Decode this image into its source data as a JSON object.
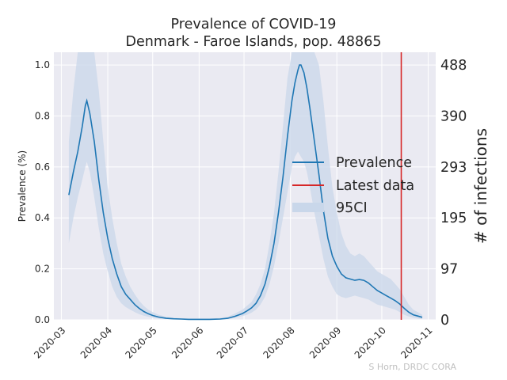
{
  "chart_data": {
    "type": "line",
    "title": "Prevalence of COVID-19",
    "subtitle": "Denmark - Faroe Islands, pop. 48865",
    "ylabel": "Prevalence (%)",
    "ylabel_right": "# of infections",
    "credit": "S Horn, DRDC CORA",
    "x_ticks": [
      "2020-03",
      "2020-04",
      "2020-05",
      "2020-06",
      "2020-07",
      "2020-08",
      "2020-09",
      "2020-10",
      "2020-11"
    ],
    "y_ticks": [
      "0.0",
      "0.2",
      "0.4",
      "0.6",
      "0.8",
      "1.0"
    ],
    "y_ticks_right": [
      "0",
      "97",
      "195",
      "293",
      "390",
      "488"
    ],
    "ylim": [
      0,
      1.05
    ],
    "xlim": [
      "2020-02-25",
      "2020-11-06"
    ],
    "grid": true,
    "legend_position": "center-right",
    "colors": {
      "prevalence": "#1f77b4",
      "latest": "#d62728",
      "ci": "#c9d7ea",
      "background": "#eaeaf2"
    },
    "latest_data_date": "2020-10-14",
    "series": [
      {
        "name": "Prevalence",
        "x": [
          "2020-03-06",
          "2020-03-09",
          "2020-03-12",
          "2020-03-15",
          "2020-03-17",
          "2020-03-18",
          "2020-03-20",
          "2020-03-23",
          "2020-03-26",
          "2020-03-29",
          "2020-04-01",
          "2020-04-04",
          "2020-04-07",
          "2020-04-10",
          "2020-04-13",
          "2020-04-16",
          "2020-04-19",
          "2020-04-22",
          "2020-04-25",
          "2020-04-28",
          "2020-05-01",
          "2020-05-05",
          "2020-05-10",
          "2020-05-15",
          "2020-05-20",
          "2020-05-25",
          "2020-06-01",
          "2020-06-08",
          "2020-06-15",
          "2020-06-20",
          "2020-06-25",
          "2020-06-30",
          "2020-07-03",
          "2020-07-06",
          "2020-07-09",
          "2020-07-12",
          "2020-07-15",
          "2020-07-18",
          "2020-07-21",
          "2020-07-24",
          "2020-07-27",
          "2020-07-30",
          "2020-08-02",
          "2020-08-04",
          "2020-08-06",
          "2020-08-07",
          "2020-08-08",
          "2020-08-10",
          "2020-08-12",
          "2020-08-14",
          "2020-08-17",
          "2020-08-20",
          "2020-08-23",
          "2020-08-26",
          "2020-08-29",
          "2020-09-01",
          "2020-09-04",
          "2020-09-07",
          "2020-09-10",
          "2020-09-13",
          "2020-09-16",
          "2020-09-19",
          "2020-09-22",
          "2020-09-25",
          "2020-09-28",
          "2020-10-01",
          "2020-10-04",
          "2020-10-07",
          "2020-10-10",
          "2020-10-13",
          "2020-10-16",
          "2020-10-19",
          "2020-10-22",
          "2020-10-25",
          "2020-10-28"
        ],
        "values": [
          0.49,
          0.58,
          0.66,
          0.76,
          0.84,
          0.86,
          0.81,
          0.7,
          0.55,
          0.42,
          0.32,
          0.24,
          0.18,
          0.13,
          0.1,
          0.08,
          0.06,
          0.045,
          0.033,
          0.024,
          0.017,
          0.011,
          0.006,
          0.004,
          0.003,
          0.002,
          0.002,
          0.002,
          0.003,
          0.006,
          0.014,
          0.025,
          0.035,
          0.047,
          0.065,
          0.095,
          0.14,
          0.21,
          0.3,
          0.42,
          0.56,
          0.72,
          0.86,
          0.93,
          0.98,
          1.0,
          1.0,
          0.97,
          0.91,
          0.83,
          0.7,
          0.57,
          0.43,
          0.32,
          0.25,
          0.21,
          0.18,
          0.165,
          0.16,
          0.155,
          0.158,
          0.155,
          0.145,
          0.13,
          0.115,
          0.105,
          0.095,
          0.085,
          0.075,
          0.062,
          0.045,
          0.03,
          0.02,
          0.015,
          0.01
        ]
      }
    ],
    "ci_band": {
      "name": "95CI",
      "x": [
        "2020-03-06",
        "2020-03-09",
        "2020-03-12",
        "2020-03-15",
        "2020-03-17",
        "2020-03-18",
        "2020-03-20",
        "2020-03-23",
        "2020-03-26",
        "2020-03-29",
        "2020-04-01",
        "2020-04-04",
        "2020-04-07",
        "2020-04-10",
        "2020-04-13",
        "2020-04-16",
        "2020-04-19",
        "2020-04-22",
        "2020-04-25",
        "2020-04-28",
        "2020-05-01",
        "2020-05-05",
        "2020-05-10",
        "2020-05-15",
        "2020-05-20",
        "2020-05-25",
        "2020-06-01",
        "2020-06-08",
        "2020-06-15",
        "2020-06-20",
        "2020-06-25",
        "2020-06-30",
        "2020-07-03",
        "2020-07-06",
        "2020-07-09",
        "2020-07-12",
        "2020-07-15",
        "2020-07-18",
        "2020-07-21",
        "2020-07-24",
        "2020-07-27",
        "2020-07-30",
        "2020-08-02",
        "2020-08-04",
        "2020-08-06",
        "2020-08-07",
        "2020-08-08",
        "2020-08-10",
        "2020-08-12",
        "2020-08-14",
        "2020-08-17",
        "2020-08-20",
        "2020-08-23",
        "2020-08-26",
        "2020-08-29",
        "2020-09-01",
        "2020-09-04",
        "2020-09-07",
        "2020-09-10",
        "2020-09-13",
        "2020-09-16",
        "2020-09-19",
        "2020-09-22",
        "2020-09-25",
        "2020-09-28",
        "2020-10-01",
        "2020-10-04",
        "2020-10-07",
        "2020-10-10",
        "2020-10-13",
        "2020-10-16",
        "2020-10-19",
        "2020-10-22",
        "2020-10-25",
        "2020-10-28"
      ],
      "lower": [
        0.3,
        0.4,
        0.48,
        0.55,
        0.6,
        0.62,
        0.58,
        0.48,
        0.36,
        0.26,
        0.19,
        0.13,
        0.09,
        0.065,
        0.05,
        0.04,
        0.03,
        0.022,
        0.016,
        0.012,
        0.008,
        0.005,
        0.003,
        0.002,
        0.001,
        0.001,
        0.001,
        0.001,
        0.001,
        0.003,
        0.008,
        0.015,
        0.02,
        0.028,
        0.04,
        0.06,
        0.09,
        0.14,
        0.21,
        0.3,
        0.4,
        0.5,
        0.6,
        0.64,
        0.66,
        0.65,
        0.64,
        0.62,
        0.58,
        0.52,
        0.42,
        0.33,
        0.24,
        0.17,
        0.13,
        0.1,
        0.09,
        0.085,
        0.09,
        0.095,
        0.09,
        0.085,
        0.08,
        0.07,
        0.06,
        0.055,
        0.05,
        0.045,
        0.04,
        0.03,
        0.02,
        0.013,
        0.008,
        0.005,
        0.003
      ],
      "upper": [
        0.7,
        0.9,
        1.05,
        1.05,
        1.05,
        1.05,
        1.05,
        1.05,
        0.9,
        0.7,
        0.52,
        0.4,
        0.3,
        0.22,
        0.17,
        0.13,
        0.1,
        0.075,
        0.055,
        0.04,
        0.03,
        0.02,
        0.012,
        0.008,
        0.006,
        0.005,
        0.005,
        0.005,
        0.007,
        0.012,
        0.025,
        0.04,
        0.055,
        0.07,
        0.1,
        0.14,
        0.2,
        0.3,
        0.42,
        0.58,
        0.76,
        0.95,
        1.05,
        1.05,
        1.05,
        1.05,
        1.05,
        1.05,
        1.05,
        1.05,
        1.05,
        1.0,
        0.86,
        0.68,
        0.52,
        0.42,
        0.34,
        0.29,
        0.26,
        0.25,
        0.26,
        0.25,
        0.23,
        0.21,
        0.19,
        0.18,
        0.17,
        0.16,
        0.14,
        0.12,
        0.09,
        0.06,
        0.04,
        0.03,
        0.02
      ]
    },
    "legend": [
      "Prevalence",
      "Latest data",
      "95CI"
    ]
  }
}
